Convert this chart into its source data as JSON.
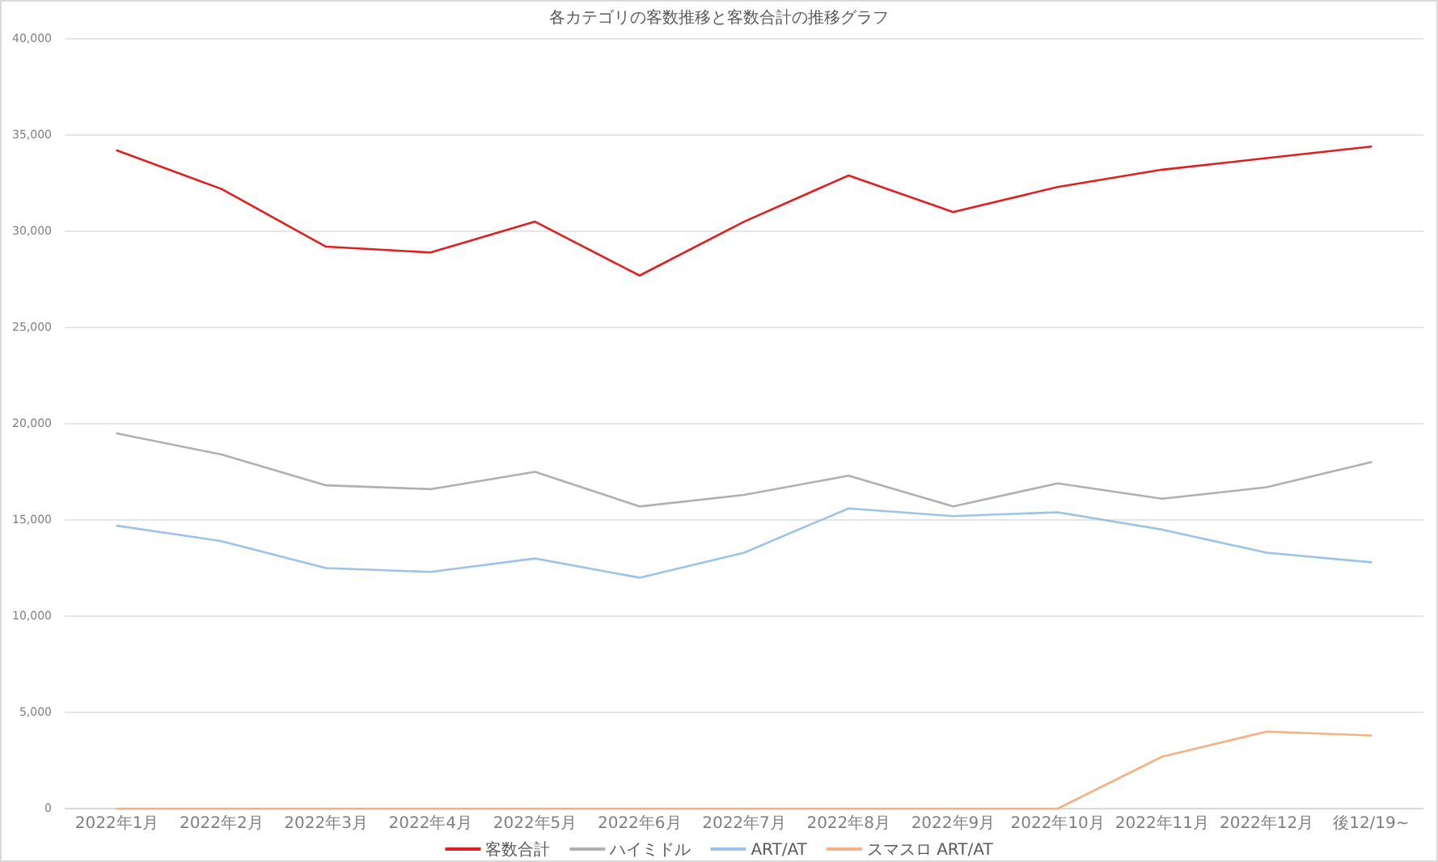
{
  "chart_data": {
    "type": "line",
    "title": "各カテゴリの客数推移と客数合計の推移グラフ",
    "categories": [
      "2022年1月",
      "2022年2月",
      "2022年3月",
      "2022年4月",
      "2022年5月",
      "2022年6月",
      "2022年7月",
      "2022年8月",
      "2022年9月",
      "2022年10月",
      "2022年11月",
      "2022年12月",
      "後12/19~"
    ],
    "series": [
      {
        "name": "客数合計",
        "color": "#e02020",
        "values": [
          34200,
          32200,
          29200,
          28900,
          30500,
          27700,
          30500,
          32900,
          31000,
          32300,
          33200,
          33800,
          34400
        ]
      },
      {
        "name": "ハイミドル",
        "color": "#b0b0b0",
        "values": [
          19500,
          18400,
          16800,
          16600,
          17500,
          15700,
          16300,
          17300,
          15700,
          16900,
          16100,
          16700,
          18000
        ]
      },
      {
        "name": "ART/AT",
        "color": "#9dc3e6",
        "values": [
          14700,
          13900,
          12500,
          12300,
          13000,
          12000,
          13300,
          15600,
          15200,
          15400,
          14500,
          13300,
          12800
        ]
      },
      {
        "name": "スマスロ ART/AT",
        "color": "#f4b183",
        "values": [
          0,
          0,
          0,
          0,
          0,
          0,
          0,
          0,
          0,
          0,
          2700,
          4000,
          3800
        ]
      }
    ],
    "ylim": [
      0,
      40000
    ],
    "yticks": [
      {
        "value": 0,
        "label": "0"
      },
      {
        "value": 5000,
        "label": "5,000"
      },
      {
        "value": 10000,
        "label": "10,000"
      },
      {
        "value": 15000,
        "label": "15,000"
      },
      {
        "value": 20000,
        "label": "20,000"
      },
      {
        "value": 25000,
        "label": "25,000"
      },
      {
        "value": 30000,
        "label": "30,000"
      },
      {
        "value": 35000,
        "label": "35,000"
      },
      {
        "value": 40000,
        "label": "40,000"
      }
    ],
    "grid": "y",
    "legend": "bottom",
    "marker": "none",
    "line_style": "solid"
  }
}
